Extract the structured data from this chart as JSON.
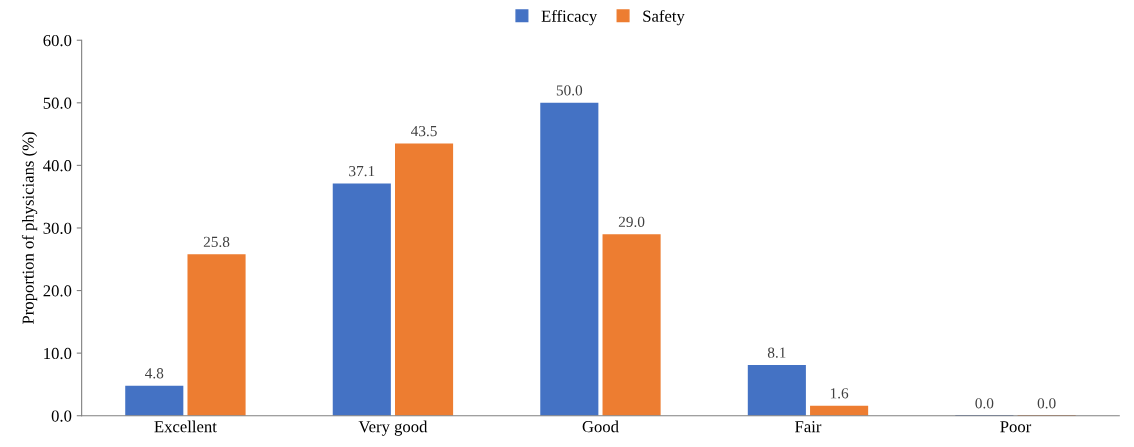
{
  "chart_data": {
    "type": "bar",
    "ylabel": "Proportion of physicians (%)",
    "categories": [
      "Excellent",
      "Very good",
      "Good",
      "Fair",
      "Poor"
    ],
    "series": [
      {
        "name": "Efficacy",
        "color": "#4472c4",
        "values": [
          4.8,
          37.1,
          50.0,
          8.1,
          0.0
        ],
        "value_labels": [
          "4.8",
          "37.1",
          "50.0",
          "8.1",
          "0.0"
        ]
      },
      {
        "name": "Safety",
        "color": "#ed7d31",
        "values": [
          25.8,
          43.5,
          29.0,
          1.6,
          0.0
        ],
        "value_labels": [
          "25.8",
          "43.5",
          "29.0",
          "1.6",
          "0.0"
        ]
      }
    ],
    "ylim": [
      0,
      60
    ],
    "yticks": [
      {
        "value": 0,
        "label": "0.0"
      },
      {
        "value": 10,
        "label": "10.0"
      },
      {
        "value": 20,
        "label": "20.0"
      },
      {
        "value": 30,
        "label": "30.0"
      },
      {
        "value": 40,
        "label": "40.0"
      },
      {
        "value": 50,
        "label": "50.0"
      },
      {
        "value": 60,
        "label": "60.0"
      }
    ],
    "grid": false,
    "legend": "top"
  }
}
